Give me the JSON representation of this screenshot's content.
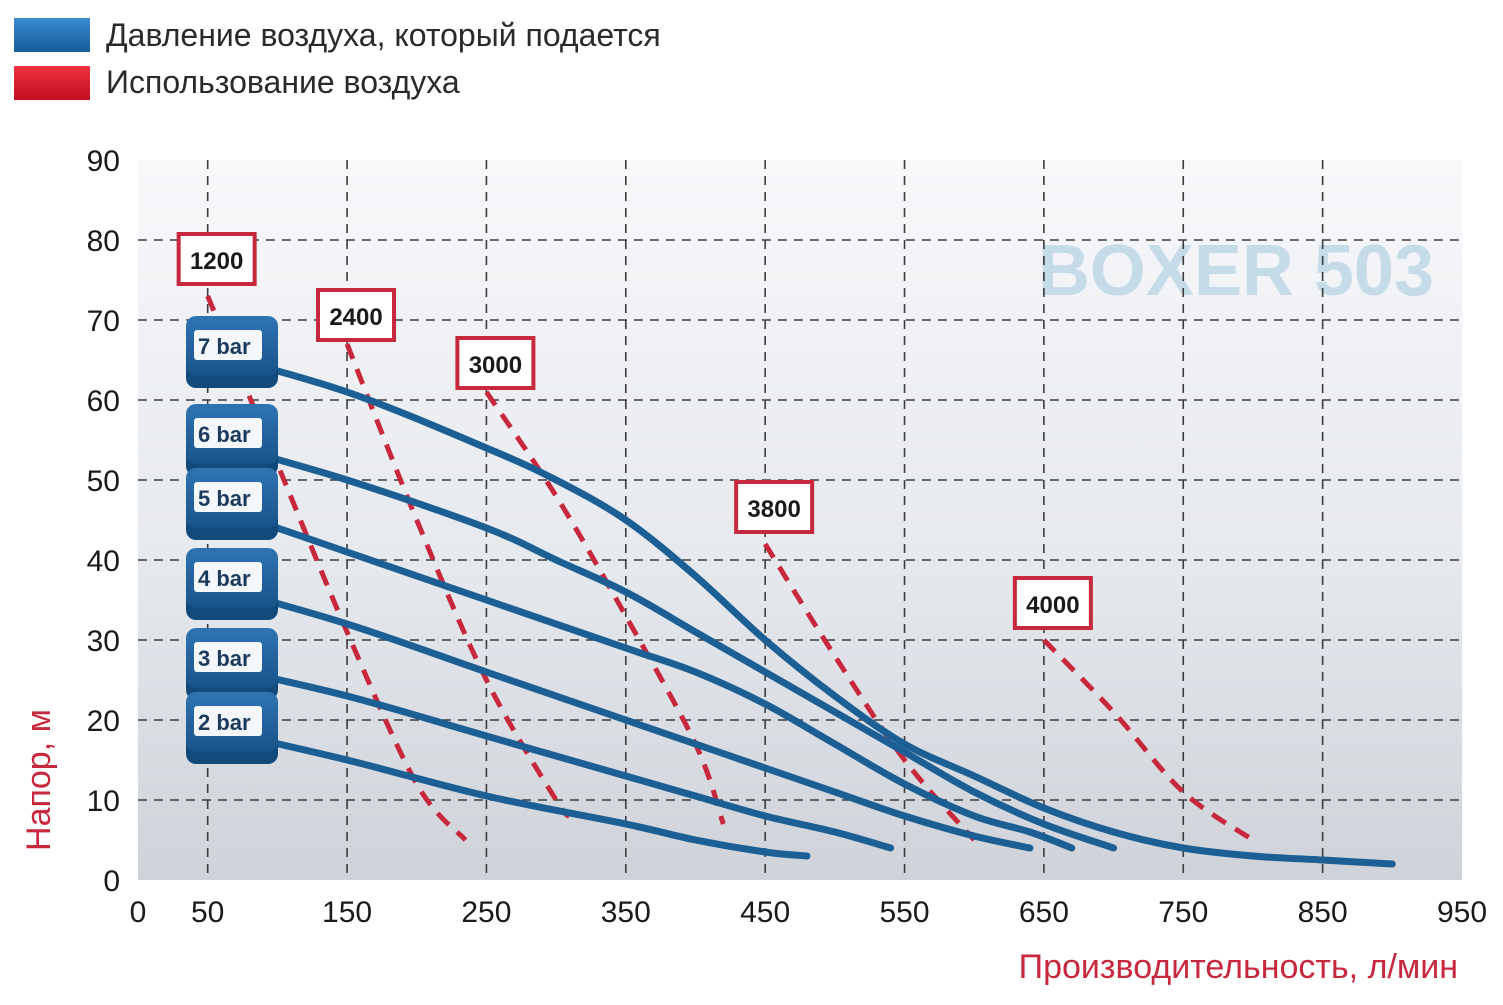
{
  "chart_data": {
    "type": "line",
    "title": "",
    "watermark": "BOXER 503",
    "xlabel": "Производительность, л/мин",
    "ylabel": "Напор, м",
    "xlim": [
      0,
      950
    ],
    "ylim": [
      0,
      90
    ],
    "x_ticks": [
      0,
      50,
      150,
      250,
      350,
      450,
      550,
      650,
      750,
      850,
      950
    ],
    "x_gridlines": [
      50,
      150,
      250,
      350,
      450,
      550,
      650,
      750,
      850
    ],
    "y_ticks": [
      0,
      10,
      20,
      30,
      40,
      50,
      60,
      70,
      80,
      90
    ],
    "y_gridlines": [
      10,
      20,
      30,
      40,
      50,
      60,
      70,
      80
    ],
    "grid": true,
    "legend": {
      "placement": "top-left",
      "items": [
        {
          "label": "Давление воздуха, который подается",
          "color": "#1a6aaa"
        },
        {
          "label": "Использование воздуха",
          "color": "#e0192d"
        }
      ]
    },
    "pressure_color": "#1b5f95",
    "consumption_color": "#c8283e",
    "pressure_series": [
      {
        "name": "7 bar",
        "points": [
          [
            50,
            66
          ],
          [
            150,
            61
          ],
          [
            250,
            54
          ],
          [
            300,
            50
          ],
          [
            350,
            45
          ],
          [
            400,
            38
          ],
          [
            450,
            30
          ],
          [
            500,
            23
          ],
          [
            550,
            17
          ],
          [
            600,
            13
          ],
          [
            650,
            9
          ],
          [
            700,
            6
          ],
          [
            750,
            4
          ],
          [
            800,
            3
          ],
          [
            850,
            2.5
          ],
          [
            900,
            2
          ]
        ]
      },
      {
        "name": "6 bar",
        "points": [
          [
            50,
            55
          ],
          [
            150,
            50
          ],
          [
            250,
            44
          ],
          [
            300,
            40
          ],
          [
            350,
            36
          ],
          [
            400,
            31
          ],
          [
            450,
            26
          ],
          [
            500,
            21
          ],
          [
            550,
            16
          ],
          [
            600,
            11
          ],
          [
            650,
            7
          ],
          [
            700,
            4
          ]
        ]
      },
      {
        "name": "5 bar",
        "points": [
          [
            50,
            47
          ],
          [
            150,
            41
          ],
          [
            250,
            35
          ],
          [
            350,
            29
          ],
          [
            400,
            26
          ],
          [
            450,
            22
          ],
          [
            500,
            17
          ],
          [
            550,
            12
          ],
          [
            600,
            8
          ],
          [
            640,
            6
          ],
          [
            670,
            4
          ]
        ]
      },
      {
        "name": "4 bar",
        "points": [
          [
            50,
            37
          ],
          [
            150,
            32
          ],
          [
            250,
            26
          ],
          [
            350,
            20
          ],
          [
            400,
            17
          ],
          [
            450,
            14
          ],
          [
            500,
            11
          ],
          [
            550,
            8
          ],
          [
            600,
            5.5
          ],
          [
            640,
            4
          ]
        ]
      },
      {
        "name": "3 bar",
        "points": [
          [
            50,
            27
          ],
          [
            150,
            23
          ],
          [
            250,
            18
          ],
          [
            350,
            13
          ],
          [
            400,
            10.5
          ],
          [
            450,
            8
          ],
          [
            500,
            6
          ],
          [
            540,
            4
          ]
        ]
      },
      {
        "name": "2 bar",
        "points": [
          [
            50,
            19
          ],
          [
            150,
            15
          ],
          [
            250,
            10.5
          ],
          [
            350,
            7
          ],
          [
            400,
            5
          ],
          [
            450,
            3.5
          ],
          [
            480,
            3
          ]
        ]
      }
    ],
    "consumption_series": [
      {
        "name": "1200",
        "points": [
          [
            50,
            73
          ],
          [
            100,
            52
          ],
          [
            150,
            31
          ],
          [
            200,
            12
          ],
          [
            235,
            5
          ]
        ]
      },
      {
        "name": "2400",
        "points": [
          [
            150,
            67
          ],
          [
            200,
            45
          ],
          [
            250,
            25
          ],
          [
            300,
            10
          ],
          [
            310,
            8
          ]
        ]
      },
      {
        "name": "3000",
        "points": [
          [
            250,
            61
          ],
          [
            300,
            48
          ],
          [
            350,
            33
          ],
          [
            400,
            17
          ],
          [
            420,
            7
          ]
        ]
      },
      {
        "name": "3800",
        "points": [
          [
            450,
            42
          ],
          [
            500,
            28
          ],
          [
            550,
            15
          ],
          [
            600,
            5
          ]
        ]
      },
      {
        "name": "4000",
        "points": [
          [
            650,
            30
          ],
          [
            700,
            21
          ],
          [
            750,
            11
          ],
          [
            800,
            5
          ]
        ]
      }
    ],
    "consumption_label_anchor": [
      {
        "name": "1200",
        "x": 55,
        "y": 77.5
      },
      {
        "name": "2400",
        "x": 155,
        "y": 70.5
      },
      {
        "name": "3000",
        "x": 255,
        "y": 64.5
      },
      {
        "name": "3800",
        "x": 455,
        "y": 46.5
      },
      {
        "name": "4000",
        "x": 655,
        "y": 34.5
      }
    ]
  }
}
